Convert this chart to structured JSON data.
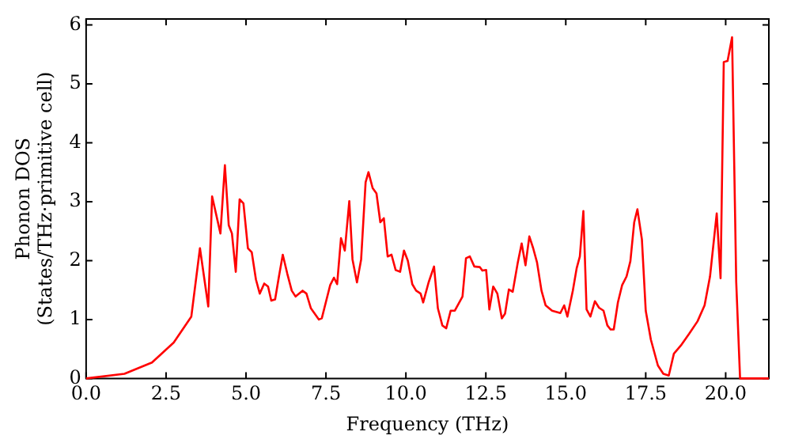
{
  "chart_data": {
    "type": "line",
    "xlabel": "Frequency (THz)",
    "ylabel": "Phonon DOS\n(States/THz·primitive cell)",
    "xlim": [
      0,
      21.35
    ],
    "ylim": [
      0,
      6.1
    ],
    "xticks": [
      {
        "value": 0,
        "label": "0.0"
      },
      {
        "value": 2.5,
        "label": "2.5"
      },
      {
        "value": 5,
        "label": "5.0"
      },
      {
        "value": 7.5,
        "label": "7.5"
      },
      {
        "value": 10,
        "label": "10.0"
      },
      {
        "value": 12.5,
        "label": "12.5"
      },
      {
        "value": 15,
        "label": "15.0"
      },
      {
        "value": 17.5,
        "label": "17.5"
      },
      {
        "value": 20,
        "label": "20.0"
      }
    ],
    "yticks": [
      0,
      1,
      2,
      3,
      4,
      5,
      6
    ],
    "series": [
      {
        "color": "#ff0000",
        "x": [
          0,
          1.2,
          2.06,
          2.74,
          3.29,
          3.56,
          3.82,
          3.94,
          4.2,
          4.34,
          4.46,
          4.56,
          4.68,
          4.8,
          4.92,
          5.06,
          5.18,
          5.31,
          5.43,
          5.57,
          5.69,
          5.79,
          5.91,
          6.03,
          6.15,
          6.29,
          6.43,
          6.55,
          6.77,
          6.89,
          7.03,
          7.28,
          7.37,
          7.63,
          7.75,
          7.85,
          7.97,
          8.09,
          8.23,
          8.33,
          8.47,
          8.6,
          8.74,
          8.83,
          8.96,
          9.08,
          9.2,
          9.31,
          9.43,
          9.55,
          9.68,
          9.82,
          9.94,
          10.06,
          10.2,
          10.32,
          10.46,
          10.54,
          10.71,
          10.88,
          11.0,
          11.14,
          11.26,
          11.4,
          11.53,
          11.77,
          11.88,
          12.0,
          12.14,
          12.31,
          12.39,
          12.51,
          12.61,
          12.73,
          12.86,
          13.0,
          13.1,
          13.22,
          13.34,
          13.5,
          13.62,
          13.74,
          13.86,
          13.98,
          14.1,
          14.24,
          14.37,
          14.57,
          14.83,
          14.95,
          15.05,
          15.22,
          15.34,
          15.44,
          15.55,
          15.65,
          15.77,
          15.91,
          16.04,
          16.18,
          16.3,
          16.4,
          16.5,
          16.63,
          16.76,
          16.9,
          17.02,
          17.14,
          17.24,
          17.38,
          17.5,
          17.66,
          17.88,
          18.05,
          18.22,
          18.38,
          18.6,
          18.86,
          19.12,
          19.34,
          19.51,
          19.72,
          19.84,
          19.94,
          20.06,
          20.2,
          20.33,
          20.45,
          21.35
        ],
        "values": [
          0,
          0.08,
          0.27,
          0.61,
          1.05,
          2.21,
          1.22,
          3.09,
          2.46,
          3.62,
          2.6,
          2.46,
          1.81,
          3.04,
          2.97,
          2.21,
          2.14,
          1.68,
          1.44,
          1.61,
          1.56,
          1.32,
          1.34,
          1.73,
          2.1,
          1.78,
          1.49,
          1.39,
          1.49,
          1.44,
          1.19,
          1.0,
          1.02,
          1.58,
          1.71,
          1.6,
          2.38,
          2.17,
          3.01,
          2.02,
          1.63,
          2.02,
          3.33,
          3.5,
          3.23,
          3.14,
          2.65,
          2.72,
          2.07,
          2.1,
          1.84,
          1.81,
          2.17,
          2.0,
          1.6,
          1.49,
          1.44,
          1.29,
          1.63,
          1.9,
          1.19,
          0.9,
          0.85,
          1.15,
          1.15,
          1.39,
          2.04,
          2.07,
          1.9,
          1.89,
          1.83,
          1.84,
          1.17,
          1.56,
          1.44,
          1.02,
          1.1,
          1.51,
          1.47,
          1.97,
          2.29,
          1.92,
          2.41,
          2.21,
          1.97,
          1.49,
          1.24,
          1.15,
          1.11,
          1.24,
          1.05,
          1.49,
          1.87,
          2.07,
          2.84,
          1.17,
          1.05,
          1.31,
          1.2,
          1.15,
          0.9,
          0.83,
          0.83,
          1.29,
          1.58,
          1.73,
          1.99,
          2.65,
          2.87,
          2.36,
          1.15,
          0.66,
          0.22,
          0.08,
          0.05,
          0.42,
          0.56,
          0.76,
          0.97,
          1.24,
          1.73,
          2.8,
          1.7,
          5.37,
          5.39,
          5.79,
          1.63,
          0,
          0
        ]
      }
    ]
  }
}
